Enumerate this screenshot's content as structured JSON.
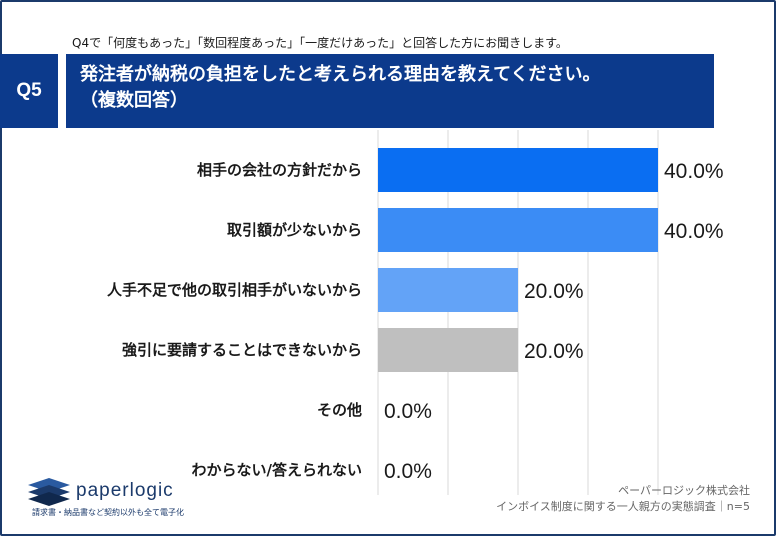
{
  "header": {
    "note": "Q4で「何度もあった」「数回程度あった」「一度だけあった」と回答した方にお聞きします。",
    "question_number": "Q5",
    "question_line1": "発注者が納税の負担をしたと考えられる理由を教えてください。",
    "question_line2": "（複数回答）"
  },
  "chart_data": {
    "type": "bar",
    "orientation": "horizontal",
    "categories": [
      "相手の会社の方針だから",
      "取引額が少ないから",
      "人手不足で他の取引相手がいないから",
      "強引に要請することはできないから",
      "その他",
      "わからない/答えられない"
    ],
    "values": [
      40.0,
      40.0,
      20.0,
      20.0,
      0.0,
      0.0
    ],
    "value_labels": [
      "40.0%",
      "40.0%",
      "20.0%",
      "20.0%",
      "0.0%",
      "0.0%"
    ],
    "colors": [
      "#0a6ef2",
      "#3b8cf5",
      "#63a3f7",
      "#bfbfbf",
      "#bfbfbf",
      "#bfbfbf"
    ],
    "xlim": [
      0,
      40
    ],
    "grid": true,
    "legend": "none"
  },
  "footer": {
    "logo_text": "paperlogic",
    "tagline": "請求書・納品書など契約以外も全て電子化",
    "source_line1": "ペーパーロジック株式会社",
    "source_line2": "インボイス制度に関する一人親方の実態調査｜n=5"
  }
}
